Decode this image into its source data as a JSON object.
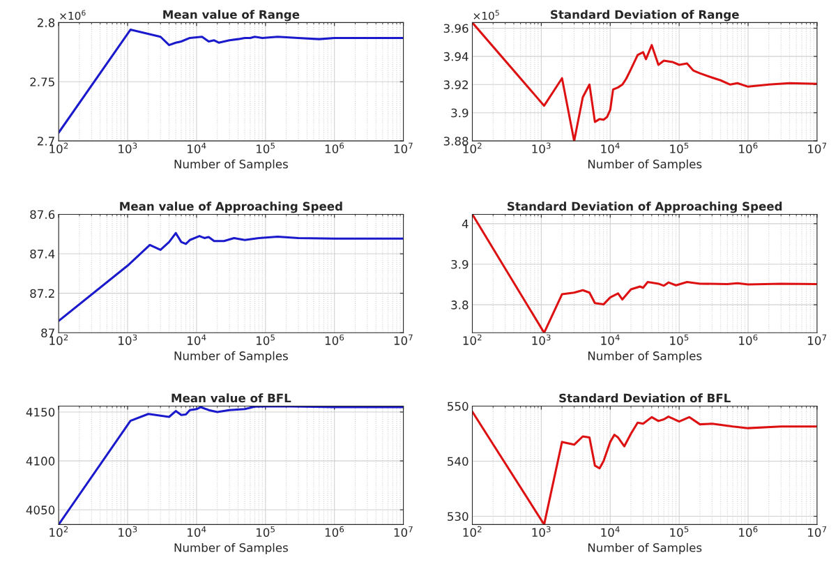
{
  "chart_data": [
    {
      "type": "line",
      "title": "Mean value of Range",
      "xlabel": "Number of Samples",
      "log": "x",
      "grid": true,
      "annotations": [
        "×10$^{6}$"
      ],
      "xlim": [
        100,
        10000000
      ],
      "xticks": [
        {
          "value": 100,
          "label": "10$^{2}$"
        },
        {
          "value": 1000,
          "label": "10$^{3}$"
        },
        {
          "value": 10000,
          "label": "10$^{4}$"
        },
        {
          "value": 100000,
          "label": "10$^{5}$"
        },
        {
          "value": 1000000,
          "label": "10$^{6}$"
        },
        {
          "value": 10000000,
          "label": "10$^{7}$"
        }
      ],
      "ylim": [
        2.7,
        2.8
      ],
      "yticks": [
        2.7,
        2.75,
        2.8
      ],
      "x": [
        100,
        1100,
        3000,
        4000,
        5000,
        6000,
        8000,
        12000,
        15000,
        18000,
        21000,
        30000,
        40000,
        50000,
        60000,
        70000,
        90000,
        150000,
        300000,
        600000,
        1000000,
        10000000
      ],
      "series": [
        {
          "color": "#1a1acc",
          "values": [
            2.707,
            2.794,
            2.788,
            2.781,
            2.783,
            2.784,
            2.787,
            2.788,
            2.784,
            2.785,
            2.783,
            2.785,
            2.786,
            2.787,
            2.787,
            2.788,
            2.787,
            2.788,
            2.787,
            2.786,
            2.787,
            2.787
          ]
        }
      ]
    },
    {
      "type": "line",
      "title": "Standard Deviation of Range",
      "xlabel": "Number of Samples",
      "log": "x",
      "grid": true,
      "annotations": [
        "×10$^{5}$"
      ],
      "xlim": [
        100,
        10000000
      ],
      "xticks": [
        {
          "value": 100,
          "label": "10$^{2}$"
        },
        {
          "value": 1000,
          "label": "10$^{3}$"
        },
        {
          "value": 10000,
          "label": "10$^{4}$"
        },
        {
          "value": 100000,
          "label": "10$^{5}$"
        },
        {
          "value": 1000000,
          "label": "10$^{6}$"
        },
        {
          "value": 10000000,
          "label": "10$^{7}$"
        }
      ],
      "ylim": [
        3.88,
        3.964
      ],
      "yticks": [
        3.88,
        3.9,
        3.92,
        3.94,
        3.96
      ],
      "x": [
        100,
        1100,
        2000,
        3000,
        4000,
        5000,
        6000,
        7000,
        8000,
        9000,
        10000,
        11000,
        13000,
        15000,
        17000,
        20000,
        25000,
        30000,
        33000,
        40000,
        50000,
        60000,
        80000,
        100000,
        130000,
        160000,
        200000,
        300000,
        400000,
        550000,
        700000,
        1000000,
        2000000,
        4000000,
        10000000
      ],
      "series": [
        {
          "color": "#dd1111",
          "values": [
            3.964,
            3.905,
            3.9245,
            3.88,
            3.911,
            3.92,
            3.8935,
            3.8955,
            3.895,
            3.897,
            3.902,
            3.9165,
            3.918,
            3.92,
            3.924,
            3.931,
            3.941,
            3.943,
            3.938,
            3.948,
            3.934,
            3.937,
            3.936,
            3.934,
            3.935,
            3.93,
            3.928,
            3.925,
            3.923,
            3.92,
            3.921,
            3.9185,
            3.92,
            3.921,
            3.9205
          ]
        }
      ]
    },
    {
      "type": "line",
      "title": "Mean value of Approaching Speed",
      "xlabel": "Number of Samples",
      "log": "x",
      "grid": true,
      "xlim": [
        100,
        10000000
      ],
      "xticks": [
        {
          "value": 100,
          "label": "10$^{2}$"
        },
        {
          "value": 1000,
          "label": "10$^{3}$"
        },
        {
          "value": 10000,
          "label": "10$^{4}$"
        },
        {
          "value": 100000,
          "label": "10$^{5}$"
        },
        {
          "value": 1000000,
          "label": "10$^{6}$"
        },
        {
          "value": 10000000,
          "label": "10$^{7}$"
        }
      ],
      "ylim": [
        87,
        87.6
      ],
      "yticks": [
        87,
        87.2,
        87.4,
        87.6
      ],
      "x": [
        100,
        1000,
        2100,
        3000,
        4000,
        5000,
        6000,
        7000,
        8000,
        11000,
        13000,
        15000,
        18000,
        25000,
        35000,
        50000,
        80000,
        150000,
        300000,
        1000000,
        10000000
      ],
      "series": [
        {
          "color": "#1a1acc",
          "values": [
            87.06,
            87.34,
            87.445,
            87.42,
            87.46,
            87.505,
            87.46,
            87.45,
            87.47,
            87.49,
            87.48,
            87.485,
            87.465,
            87.465,
            87.48,
            87.47,
            87.48,
            87.487,
            87.48,
            87.477,
            87.477
          ]
        }
      ]
    },
    {
      "type": "line",
      "title": "Standard Deviation of Approaching Speed",
      "xlabel": "Number of Samples",
      "log": "x",
      "grid": true,
      "xlim": [
        100,
        10000000
      ],
      "xticks": [
        {
          "value": 100,
          "label": "10$^{2}$"
        },
        {
          "value": 1000,
          "label": "10$^{3}$"
        },
        {
          "value": 10000,
          "label": "10$^{4}$"
        },
        {
          "value": 100000,
          "label": "10$^{5}$"
        },
        {
          "value": 1000000,
          "label": "10$^{6}$"
        },
        {
          "value": 10000000,
          "label": "10$^{7}$"
        }
      ],
      "ylim": [
        3.731,
        4.023
      ],
      "yticks": [
        3.8,
        3.9,
        4
      ],
      "x": [
        100,
        1100,
        2000,
        3000,
        4000,
        5000,
        6000,
        8000,
        10000,
        13000,
        15000,
        20000,
        27000,
        30000,
        35000,
        50000,
        60000,
        70000,
        90000,
        130000,
        200000,
        500000,
        700000,
        1000000,
        3000000,
        10000000
      ],
      "series": [
        {
          "color": "#dd1111",
          "values": [
            4.023,
            3.731,
            3.826,
            3.83,
            3.836,
            3.83,
            3.804,
            3.801,
            3.818,
            3.828,
            3.813,
            3.838,
            3.845,
            3.842,
            3.856,
            3.852,
            3.847,
            3.855,
            3.848,
            3.856,
            3.852,
            3.851,
            3.853,
            3.85,
            3.852,
            3.851
          ]
        }
      ]
    },
    {
      "type": "line",
      "title": "Mean value of BFL",
      "xlabel": "Number of Samples",
      "log": "x",
      "grid": true,
      "xlim": [
        100,
        10000000
      ],
      "xticks": [
        {
          "value": 100,
          "label": "10$^{2}$"
        },
        {
          "value": 1000,
          "label": "10$^{3}$"
        },
        {
          "value": 10000,
          "label": "10$^{4}$"
        },
        {
          "value": 100000,
          "label": "10$^{5}$"
        },
        {
          "value": 1000000,
          "label": "10$^{6}$"
        },
        {
          "value": 10000000,
          "label": "10$^{7}$"
        }
      ],
      "ylim": [
        4035,
        4156
      ],
      "yticks": [
        4050,
        4100,
        4150
      ],
      "x": [
        100,
        1100,
        2000,
        4000,
        5000,
        6000,
        7000,
        8000,
        10000,
        11500,
        15000,
        20000,
        30000,
        50000,
        70000,
        150000,
        500000,
        1000000,
        10000000
      ],
      "series": [
        {
          "color": "#1a1acc",
          "values": [
            4035,
            4141,
            4148,
            4145,
            4151,
            4147,
            4147.5,
            4152,
            4153,
            4155,
            4152,
            4150,
            4152,
            4153,
            4155.5,
            4155.8,
            4155.3,
            4155,
            4155
          ]
        }
      ]
    },
    {
      "type": "line",
      "title": "Standard Deviation of BFL",
      "xlabel": "Number of Samples",
      "log": "x",
      "grid": true,
      "xlim": [
        100,
        10000000
      ],
      "xticks": [
        {
          "value": 100,
          "label": "10$^{2}$"
        },
        {
          "value": 1000,
          "label": "10$^{3}$"
        },
        {
          "value": 10000,
          "label": "10$^{4}$"
        },
        {
          "value": 100000,
          "label": "10$^{5}$"
        },
        {
          "value": 1000000,
          "label": "10$^{6}$"
        },
        {
          "value": 10000000,
          "label": "10$^{7}$"
        }
      ],
      "ylim": [
        528.5,
        550
      ],
      "yticks": [
        530,
        540,
        550
      ],
      "x": [
        100,
        1100,
        2000,
        3000,
        4000,
        5000,
        6000,
        7000,
        8000,
        10000,
        11500,
        13000,
        16000,
        20000,
        25000,
        30000,
        40000,
        50000,
        60000,
        70000,
        100000,
        140000,
        200000,
        300000,
        600000,
        1000000,
        3000000,
        10000000
      ],
      "series": [
        {
          "color": "#dd1111",
          "values": [
            549,
            528.5,
            543.5,
            543,
            544.5,
            544.3,
            539.2,
            538.7,
            540,
            543.5,
            544.8,
            544.3,
            542.7,
            545,
            547,
            546.8,
            548,
            547.3,
            547.6,
            548.1,
            547.2,
            548,
            546.7,
            546.8,
            546.3,
            546,
            546.3,
            546.3
          ]
        }
      ]
    }
  ]
}
